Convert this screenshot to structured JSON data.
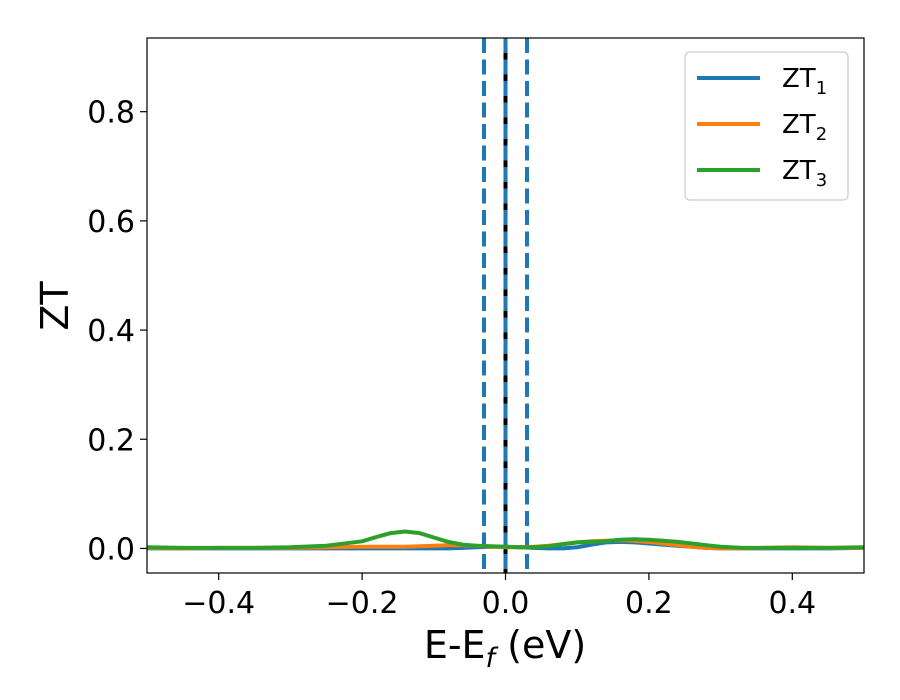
{
  "chart_data": {
    "type": "line",
    "xlabel_main": "E-E",
    "xlabel_sub": "f",
    "xlabel_unit": " (eV)",
    "ylabel": "ZT",
    "xlim": [
      -0.5,
      0.5
    ],
    "ylim": [
      -0.045,
      0.935
    ],
    "grid": false,
    "legend_position": "top-right",
    "x_ticks": [
      -0.4,
      -0.2,
      0.0,
      0.2,
      0.4
    ],
    "x_tick_labels": [
      "−0.4",
      "−0.2",
      "0.0",
      "0.2",
      "0.4"
    ],
    "y_ticks": [
      0.0,
      0.2,
      0.4,
      0.6,
      0.8
    ],
    "y_tick_labels": [
      "0.0",
      "0.2",
      "0.4",
      "0.6",
      "0.8"
    ],
    "x": [
      -0.5,
      -0.45,
      -0.4,
      -0.35,
      -0.3,
      -0.25,
      -0.2,
      -0.18,
      -0.16,
      -0.14,
      -0.12,
      -0.1,
      -0.08,
      -0.06,
      -0.04,
      -0.02,
      0.0,
      0.02,
      0.04,
      0.06,
      0.08,
      0.1,
      0.12,
      0.14,
      0.16,
      0.18,
      0.2,
      0.22,
      0.24,
      0.26,
      0.28,
      0.3,
      0.33,
      0.36,
      0.4,
      0.45,
      0.5
    ],
    "series": [
      {
        "base": "ZT",
        "sub": "1",
        "color": "#1f77b4",
        "values": [
          0.0,
          0.0,
          0.0,
          0.0,
          0.0,
          0.0,
          0.0,
          0.0,
          0.0,
          0.0,
          0.0,
          0.0,
          0.0,
          0.001,
          0.002,
          0.003,
          0.003,
          0.002,
          0.001,
          0.0,
          0.0,
          0.002,
          0.007,
          0.011,
          0.012,
          0.011,
          0.009,
          0.007,
          0.005,
          0.003,
          0.001,
          0.0,
          0.0,
          0.0,
          0.0,
          0.0,
          0.001
        ]
      },
      {
        "base": "ZT",
        "sub": "2",
        "color": "#ff7f0e",
        "values": [
          0.001,
          0.0,
          0.001,
          0.001,
          0.001,
          0.002,
          0.003,
          0.003,
          0.003,
          0.003,
          0.004,
          0.005,
          0.006,
          0.006,
          0.005,
          0.003,
          0.002,
          0.002,
          0.003,
          0.005,
          0.008,
          0.011,
          0.013,
          0.014,
          0.015,
          0.014,
          0.012,
          0.009,
          0.006,
          0.003,
          0.001,
          0.0,
          0.0,
          0.001,
          0.002,
          0.001,
          0.001
        ]
      },
      {
        "base": "ZT",
        "sub": "3",
        "color": "#2ca02c",
        "values": [
          0.002,
          0.001,
          0.001,
          0.001,
          0.002,
          0.005,
          0.013,
          0.021,
          0.028,
          0.031,
          0.028,
          0.02,
          0.012,
          0.007,
          0.005,
          0.004,
          0.003,
          0.002,
          0.002,
          0.004,
          0.008,
          0.011,
          0.012,
          0.013,
          0.016,
          0.017,
          0.016,
          0.014,
          0.012,
          0.009,
          0.006,
          0.003,
          0.001,
          0.001,
          0.001,
          0.001,
          0.002
        ]
      }
    ],
    "vlines": [
      {
        "x": 0.0,
        "color": "#000000",
        "style": "solid"
      },
      {
        "x": 0.0,
        "color": "#1f77b4",
        "style": "dashed"
      },
      {
        "x": -0.03,
        "color": "#1f77b4",
        "style": "dashed"
      },
      {
        "x": 0.03,
        "color": "#1f77b4",
        "style": "dashed"
      }
    ]
  }
}
